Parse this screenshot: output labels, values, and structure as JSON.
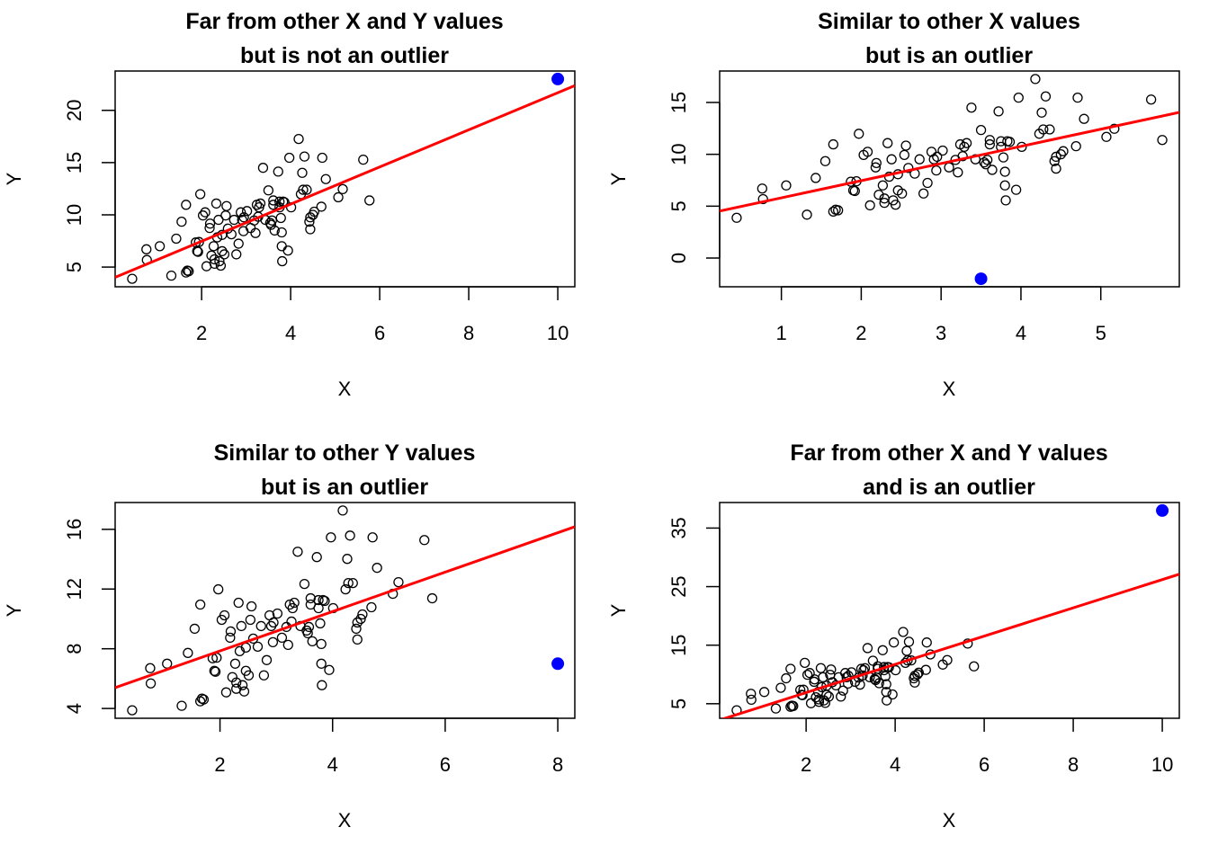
{
  "colors": {
    "points": "#000000",
    "outlier": "#0000FF",
    "fit_line": "#FF0000"
  },
  "shared_points": {
    "x": [
      0.44,
      0.76,
      0.77,
      1.06,
      1.32,
      1.43,
      1.55,
      1.65,
      1.65,
      1.71,
      1.68,
      1.87,
      1.9,
      1.92,
      1.94,
      1.97,
      2.03,
      2.08,
      2.11,
      2.18,
      2.19,
      2.22,
      2.27,
      2.29,
      2.29,
      2.33,
      2.35,
      2.38,
      2.4,
      2.43,
      2.46,
      2.46,
      2.51,
      2.54,
      2.56,
      2.59,
      2.67,
      2.73,
      2.78,
      2.83,
      2.88,
      2.91,
      2.94,
      2.95,
      3.02,
      3.1,
      3.18,
      3.21,
      3.24,
      3.27,
      3.29,
      3.32,
      3.38,
      3.43,
      3.5,
      3.54,
      3.56,
      3.58,
      3.61,
      3.61,
      3.64,
      3.72,
      3.75,
      3.75,
      3.78,
      3.8,
      3.8,
      3.81,
      3.83,
      3.86,
      3.94,
      3.97,
      4.01,
      4.18,
      4.23,
      4.26,
      4.28,
      4.31,
      4.36,
      4.44,
      4.42,
      4.44,
      4.5,
      4.53,
      4.71,
      4.69,
      4.79,
      5.07,
      5.17,
      5.63,
      5.77
    ],
    "y": [
      3.88,
      6.7,
      5.68,
      7.0,
      4.18,
      7.72,
      9.34,
      10.96,
      4.48,
      4.6,
      4.66,
      7.36,
      6.52,
      6.46,
      7.4,
      11.98,
      9.94,
      10.24,
      5.08,
      8.74,
      9.16,
      6.1,
      7.0,
      5.74,
      5.32,
      11.08,
      7.84,
      9.52,
      5.56,
      5.14,
      8.08,
      6.52,
      6.22,
      9.94,
      10.84,
      8.68,
      8.14,
      9.52,
      6.22,
      7.24,
      10.24,
      9.52,
      8.44,
      9.76,
      10.36,
      8.74,
      9.46,
      8.26,
      10.96,
      9.82,
      10.72,
      11.08,
      14.5,
      9.52,
      12.34,
      9.22,
      9.04,
      9.46,
      10.96,
      11.38,
      8.5,
      14.14,
      11.26,
      10.72,
      9.7,
      8.32,
      7.0,
      5.56,
      11.26,
      11.2,
      6.58,
      15.46,
      10.72,
      17.26,
      11.98,
      14.02,
      12.4,
      15.58,
      12.4,
      9.76,
      9.34,
      8.62,
      10.0,
      10.3,
      15.46,
      10.78,
      13.42,
      11.68,
      12.46,
      15.28,
      11.38
    ]
  },
  "chart_data": [
    {
      "type": "scatter",
      "title_line1": "Far from other X and Y values",
      "title_line2": "but is not an outlier",
      "xlabel": "X",
      "ylabel": "Y",
      "outlier": {
        "x": 10,
        "y": 23
      },
      "xticks": [
        2,
        4,
        6,
        8,
        10
      ],
      "yticks": [
        5,
        10,
        15,
        20
      ],
      "fit_line": "least-squares incl. outlier"
    },
    {
      "type": "scatter",
      "title_line1": "Similar to other X values",
      "title_line2": "but is an outlier",
      "xlabel": "X",
      "ylabel": "Y",
      "outlier": {
        "x": 3.5,
        "y": -2
      },
      "xticks": [
        1,
        2,
        3,
        4,
        5
      ],
      "yticks": [
        0,
        5,
        10,
        15
      ],
      "fit_line": "least-squares incl. outlier"
    },
    {
      "type": "scatter",
      "title_line1": "Similar to other Y values",
      "title_line2": "but is an outlier",
      "xlabel": "X",
      "ylabel": "Y",
      "outlier": {
        "x": 8,
        "y": 7
      },
      "xticks": [
        2,
        4,
        6,
        8
      ],
      "yticks": [
        4,
        8,
        12,
        16
      ],
      "fit_line": "least-squares incl. outlier"
    },
    {
      "type": "scatter",
      "title_line1": "Far from other X and Y values",
      "title_line2": "and is an outlier",
      "xlabel": "X",
      "ylabel": "Y",
      "outlier": {
        "x": 10,
        "y": 38
      },
      "xticks": [
        2,
        4,
        6,
        8,
        10
      ],
      "yticks": [
        5,
        15,
        25,
        35
      ],
      "fit_line": "least-squares incl. outlier"
    }
  ]
}
